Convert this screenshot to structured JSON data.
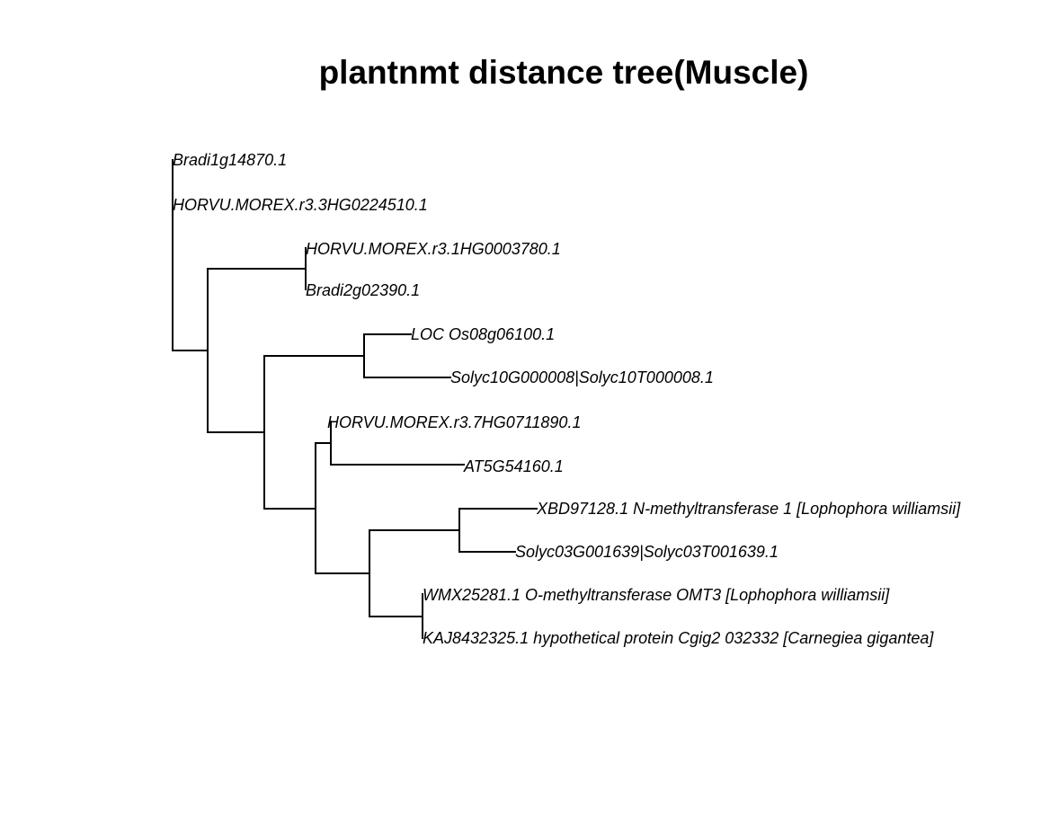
{
  "title": "plantnmt distance tree(Muscle)",
  "tree": {
    "leaves": [
      "Bradi1g14870.1",
      "HORVU.MOREX.r3.3HG0224510.1",
      "HORVU.MOREX.r3.1HG0003780.1",
      "Bradi2g02390.1",
      "LOC Os08g06100.1",
      "Solyc10G000008|Solyc10T000008.1",
      "HORVU.MOREX.r3.7HG0711890.1",
      "AT5G54160.1",
      "XBD97128.1 N-methyltransferase 1 [Lophophora williamsii]",
      "Solyc03G001639|Solyc03T001639.1",
      "WMX25281.1 O-methyltransferase OMT3 [Lophophora williamsii]",
      "KAJ8432325.1 hypothetical protein Cgig2 032332 [Carnegiea gigantea]"
    ]
  },
  "colors": {
    "line": "#000000",
    "text": "#000000",
    "background": "#ffffff"
  }
}
